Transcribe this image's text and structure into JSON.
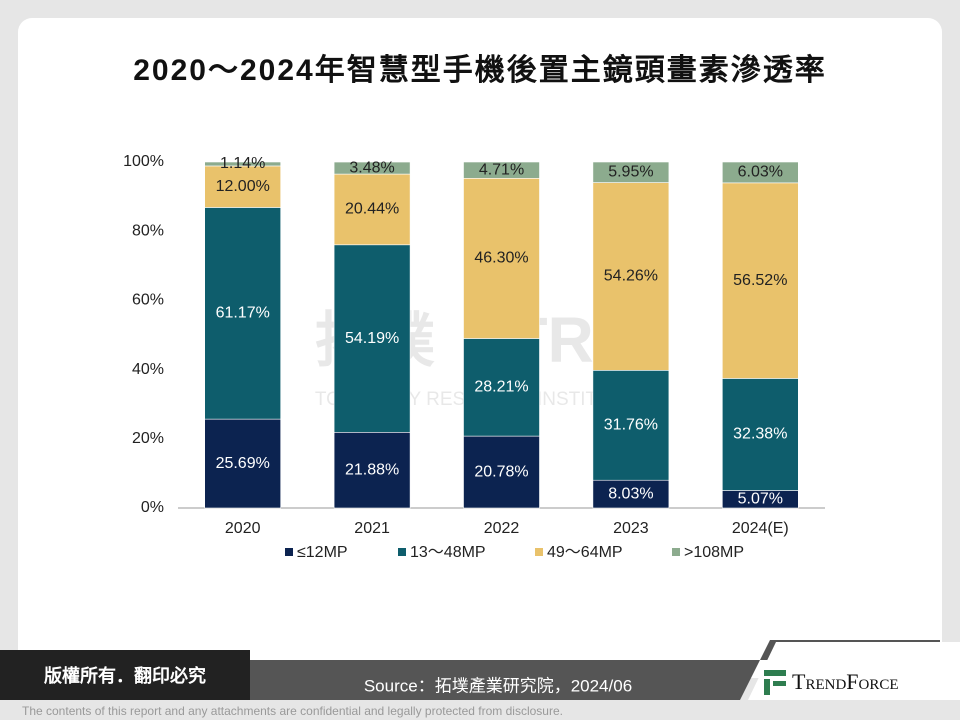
{
  "chart_data": {
    "type": "stacked_bar",
    "title": "2020～2024年智慧型手機後置主鏡頭畫素滲透率",
    "categories": [
      "2020",
      "2021",
      "2022",
      "2023",
      "2024(E)"
    ],
    "series": [
      {
        "name": "≤12MP",
        "color": "#0c2350",
        "values": [
          25.69,
          21.88,
          20.78,
          8.03,
          5.07
        ],
        "value_labels": [
          "25.69%",
          "21.88%",
          "20.78%",
          "8.03%",
          "5.07%"
        ]
      },
      {
        "name": "13～48MP",
        "color": "#0e5d6c",
        "values": [
          61.17,
          54.19,
          28.21,
          31.76,
          32.38
        ],
        "value_labels": [
          "61.17%",
          "54.19%",
          "28.21%",
          "31.76%",
          "32.38%"
        ]
      },
      {
        "name": "49～64MP",
        "color": "#e9c26b",
        "values": [
          12.0,
          20.44,
          46.3,
          54.26,
          56.52
        ],
        "value_labels": [
          "12.00%",
          "20.44%",
          "46.30%",
          "54.26%",
          "56.52%"
        ]
      },
      {
        "name": ">108MP",
        "color": "#8cab8e",
        "values": [
          1.14,
          3.48,
          4.71,
          5.95,
          6.03
        ],
        "value_labels": [
          "1.14%",
          "3.48%",
          "4.71%",
          "5.95%",
          "6.03%"
        ]
      }
    ],
    "ylim": [
      0,
      100
    ],
    "yticks": [
      {
        "value": 0,
        "label": "0%"
      },
      {
        "value": 20,
        "label": "20%"
      },
      {
        "value": 40,
        "label": "40%"
      },
      {
        "value": 60,
        "label": "60%"
      },
      {
        "value": 80,
        "label": "80%"
      },
      {
        "value": 100,
        "label": "100%"
      }
    ],
    "grid": false
  },
  "watermark": {
    "name": "拓墣",
    "abbr": "TRI",
    "full": "TOPOLOGY RESEARCH INSTITUTE"
  },
  "footer": {
    "copyright": "版權所有．翻印必究",
    "source": "Source：拓墣產業研究院，2024/06",
    "brand": "TrendForce",
    "disclaimer": "The contents of this report and any attachments are confidential and legally protected from disclosure."
  }
}
